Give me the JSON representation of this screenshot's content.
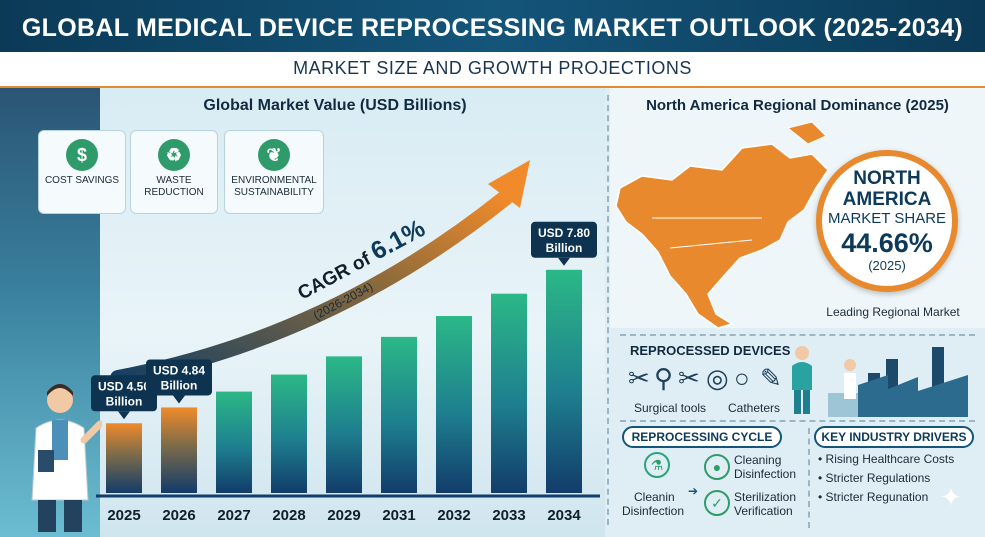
{
  "header": {
    "title": "GLOBAL MEDICAL DEVICE REPROCESSING MARKET OUTLOOK (2025-2034)",
    "subtitle": "MARKET SIZE AND GROWTH PROJECTIONS"
  },
  "benefits": [
    {
      "label": "COST SAVINGS",
      "icon": "money-hand-icon"
    },
    {
      "label": "WASTE REDUCTION",
      "icon": "recycle-bin-icon"
    },
    {
      "label": "ENVIRONMENTAL SUSTAINABILITY",
      "icon": "plant-hand-icon"
    }
  ],
  "chart_data": {
    "type": "bar",
    "title": "Global Market Value (USD Billions)",
    "categories": [
      "2025",
      "2026",
      "2027",
      "2028",
      "2029",
      "2031",
      "2032",
      "2033",
      "2034"
    ],
    "values": [
      4.5,
      4.84,
      null,
      null,
      null,
      null,
      null,
      null,
      7.8
    ],
    "callouts": [
      {
        "index": 0,
        "line1": "USD 4.50",
        "line2": "Billion"
      },
      {
        "index": 1,
        "line1": "USD 4.84",
        "line2": "Billion"
      },
      {
        "index": 8,
        "line1": "USD 7.80",
        "line2": "Billion"
      }
    ],
    "cagr_label": "CAGR of",
    "cagr_value": "6.1%",
    "cagr_period": "(2026-2034)"
  },
  "north_america": {
    "heading": "North America Regional Dominance (2025)",
    "line1": "NORTH",
    "line2": "AMERICA",
    "line3": "MARKET SHARE",
    "share": "44.66%",
    "year": "(2025)",
    "caption": "Leading Regional Market",
    "map_color": "#e8892e"
  },
  "devices": {
    "title": "REPROCESSED DEVICES",
    "items": [
      "Surgical tools",
      "Catheters"
    ]
  },
  "cycle": {
    "title": "REPROCESSING CYCLE",
    "left": [
      "Cleanin",
      "Disinfection"
    ],
    "right_top": [
      "Cleaning",
      "Disinfection"
    ],
    "right_bottom": [
      "Sterilization",
      "Verification"
    ]
  },
  "drivers": {
    "title": "KEY INDUSTRY DRIVERS",
    "items": [
      "Rising Healthcare Costs",
      "Stricter Regulations",
      "Stricter Regunation"
    ]
  },
  "colors": {
    "navy": "#0d3a5a",
    "orange": "#e8892e",
    "teal": "#2aa37a"
  }
}
